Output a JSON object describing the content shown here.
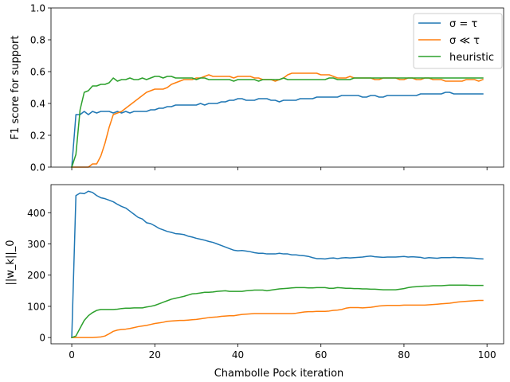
{
  "chart_data": [
    {
      "type": "line",
      "title": "",
      "xlabel": "",
      "ylabel": "F1 score for support",
      "xlim": [
        -5,
        104
      ],
      "ylim": [
        0,
        1.0
      ],
      "xticks": [
        0,
        20,
        40,
        60,
        80,
        100
      ],
      "xtick_labels_visible": false,
      "yticks": [
        0.0,
        0.2,
        0.4,
        0.6,
        0.8,
        1.0
      ],
      "ytick_labels": [
        "0.0",
        "0.2",
        "0.4",
        "0.6",
        "0.8",
        "1.0"
      ],
      "legend": {
        "location": "upper right",
        "entries": [
          "σ = τ",
          "σ ≪ τ",
          "heuristic"
        ]
      },
      "x": [
        0,
        1,
        2,
        3,
        4,
        5,
        6,
        7,
        8,
        9,
        10,
        11,
        12,
        13,
        14,
        15,
        16,
        17,
        18,
        19,
        20,
        21,
        22,
        23,
        24,
        25,
        26,
        27,
        28,
        29,
        30,
        31,
        32,
        33,
        34,
        35,
        36,
        37,
        38,
        39,
        40,
        41,
        42,
        43,
        44,
        45,
        46,
        47,
        48,
        49,
        50,
        51,
        52,
        53,
        54,
        55,
        56,
        57,
        58,
        59,
        60,
        61,
        62,
        63,
        64,
        65,
        66,
        67,
        68,
        69,
        70,
        71,
        72,
        73,
        74,
        75,
        76,
        77,
        78,
        79,
        80,
        81,
        82,
        83,
        84,
        85,
        86,
        87,
        88,
        89,
        90,
        91,
        92,
        93,
        94,
        95,
        96,
        97,
        98,
        99
      ],
      "series": [
        {
          "name": "σ = τ",
          "color": "#1f77b4",
          "values": [
            0.0,
            0.33,
            0.33,
            0.35,
            0.33,
            0.35,
            0.34,
            0.35,
            0.35,
            0.35,
            0.34,
            0.35,
            0.34,
            0.35,
            0.34,
            0.35,
            0.35,
            0.35,
            0.35,
            0.36,
            0.36,
            0.37,
            0.37,
            0.38,
            0.38,
            0.39,
            0.39,
            0.39,
            0.39,
            0.39,
            0.39,
            0.4,
            0.39,
            0.4,
            0.4,
            0.4,
            0.41,
            0.41,
            0.42,
            0.42,
            0.43,
            0.43,
            0.42,
            0.42,
            0.42,
            0.43,
            0.43,
            0.43,
            0.42,
            0.42,
            0.41,
            0.42,
            0.42,
            0.42,
            0.42,
            0.43,
            0.43,
            0.43,
            0.43,
            0.44,
            0.44,
            0.44,
            0.44,
            0.44,
            0.44,
            0.45,
            0.45,
            0.45,
            0.45,
            0.45,
            0.44,
            0.44,
            0.45,
            0.45,
            0.44,
            0.44,
            0.45,
            0.45,
            0.45,
            0.45,
            0.45,
            0.45,
            0.45,
            0.45,
            0.46,
            0.46,
            0.46,
            0.46,
            0.46,
            0.46,
            0.47,
            0.47,
            0.46,
            0.46,
            0.46,
            0.46,
            0.46,
            0.46,
            0.46,
            0.46
          ]
        },
        {
          "name": "σ ≪ τ",
          "color": "#ff7f0e",
          "values": [
            0.0,
            0.0,
            0.0,
            0.0,
            0.0,
            0.02,
            0.02,
            0.07,
            0.15,
            0.25,
            0.33,
            0.34,
            0.35,
            0.37,
            0.39,
            0.41,
            0.43,
            0.45,
            0.47,
            0.48,
            0.49,
            0.49,
            0.49,
            0.5,
            0.52,
            0.53,
            0.54,
            0.55,
            0.55,
            0.55,
            0.56,
            0.56,
            0.57,
            0.58,
            0.57,
            0.57,
            0.57,
            0.57,
            0.57,
            0.56,
            0.57,
            0.57,
            0.57,
            0.57,
            0.56,
            0.56,
            0.55,
            0.55,
            0.55,
            0.54,
            0.55,
            0.56,
            0.58,
            0.59,
            0.59,
            0.59,
            0.59,
            0.59,
            0.59,
            0.59,
            0.58,
            0.58,
            0.58,
            0.57,
            0.56,
            0.56,
            0.56,
            0.57,
            0.56,
            0.56,
            0.56,
            0.56,
            0.56,
            0.55,
            0.55,
            0.56,
            0.56,
            0.56,
            0.56,
            0.55,
            0.55,
            0.56,
            0.56,
            0.55,
            0.55,
            0.56,
            0.56,
            0.55,
            0.55,
            0.55,
            0.54,
            0.54,
            0.54,
            0.54,
            0.54,
            0.55,
            0.55,
            0.55,
            0.54,
            0.55
          ]
        },
        {
          "name": "heuristic",
          "color": "#2ca02c",
          "values": [
            0.0,
            0.08,
            0.36,
            0.47,
            0.48,
            0.51,
            0.51,
            0.52,
            0.52,
            0.53,
            0.56,
            0.54,
            0.55,
            0.55,
            0.56,
            0.55,
            0.55,
            0.56,
            0.55,
            0.56,
            0.57,
            0.57,
            0.56,
            0.57,
            0.57,
            0.56,
            0.56,
            0.56,
            0.56,
            0.56,
            0.55,
            0.56,
            0.56,
            0.55,
            0.55,
            0.55,
            0.55,
            0.55,
            0.55,
            0.54,
            0.55,
            0.55,
            0.55,
            0.55,
            0.55,
            0.54,
            0.55,
            0.55,
            0.55,
            0.55,
            0.55,
            0.56,
            0.55,
            0.55,
            0.55,
            0.55,
            0.55,
            0.55,
            0.55,
            0.55,
            0.55,
            0.55,
            0.56,
            0.56,
            0.55,
            0.55,
            0.55,
            0.55,
            0.56,
            0.56,
            0.56,
            0.56,
            0.56,
            0.56,
            0.56,
            0.56,
            0.56,
            0.56,
            0.56,
            0.56,
            0.56,
            0.56,
            0.56,
            0.56,
            0.56,
            0.56,
            0.56,
            0.56,
            0.56,
            0.56,
            0.56,
            0.56,
            0.56,
            0.56,
            0.56,
            0.56,
            0.56,
            0.56,
            0.56,
            0.56
          ]
        }
      ]
    },
    {
      "type": "line",
      "title": "",
      "xlabel": "Chambolle Pock iteration",
      "ylabel": "||w_k||_0",
      "xlim": [
        -5,
        104
      ],
      "ylim": [
        -20,
        490
      ],
      "xticks": [
        0,
        20,
        40,
        60,
        80,
        100
      ],
      "xtick_labels": [
        "0",
        "20",
        "40",
        "60",
        "80",
        "100"
      ],
      "yticks": [
        0,
        100,
        200,
        300,
        400
      ],
      "ytick_labels": [
        "0",
        "100",
        "200",
        "300",
        "400"
      ],
      "x": [
        0,
        1,
        2,
        3,
        4,
        5,
        6,
        7,
        8,
        9,
        10,
        11,
        12,
        13,
        14,
        15,
        16,
        17,
        18,
        19,
        20,
        21,
        22,
        23,
        24,
        25,
        26,
        27,
        28,
        29,
        30,
        31,
        32,
        33,
        34,
        35,
        36,
        37,
        38,
        39,
        40,
        41,
        42,
        43,
        44,
        45,
        46,
        47,
        48,
        49,
        50,
        51,
        52,
        53,
        54,
        55,
        56,
        57,
        58,
        59,
        60,
        61,
        62,
        63,
        64,
        65,
        66,
        67,
        68,
        69,
        70,
        71,
        72,
        73,
        74,
        75,
        76,
        77,
        78,
        79,
        80,
        81,
        82,
        83,
        84,
        85,
        86,
        87,
        88,
        89,
        90,
        91,
        92,
        93,
        94,
        95,
        96,
        97,
        98,
        99
      ],
      "series": [
        {
          "name": "σ = τ",
          "color": "#1f77b4",
          "values": [
            0,
            455,
            463,
            461,
            469,
            465,
            455,
            448,
            445,
            440,
            435,
            427,
            420,
            415,
            405,
            395,
            385,
            380,
            368,
            365,
            358,
            350,
            345,
            340,
            337,
            333,
            332,
            330,
            325,
            322,
            318,
            315,
            312,
            308,
            305,
            300,
            295,
            290,
            285,
            280,
            278,
            279,
            277,
            275,
            272,
            270,
            270,
            268,
            268,
            268,
            270,
            268,
            268,
            265,
            265,
            263,
            262,
            260,
            256,
            253,
            253,
            252,
            254,
            255,
            253,
            255,
            256,
            255,
            256,
            257,
            258,
            260,
            261,
            259,
            258,
            257,
            258,
            258,
            258,
            259,
            260,
            258,
            259,
            258,
            257,
            254,
            256,
            255,
            254,
            256,
            256,
            256,
            257,
            256,
            256,
            255,
            255,
            254,
            253,
            252
          ]
        },
        {
          "name": "σ ≪ τ",
          "color": "#ff7f0e",
          "values": [
            0,
            0,
            0,
            0,
            0,
            0,
            1,
            2,
            5,
            12,
            20,
            24,
            26,
            27,
            29,
            32,
            35,
            37,
            39,
            42,
            45,
            47,
            49,
            52,
            53,
            54,
            55,
            55,
            56,
            57,
            58,
            60,
            62,
            64,
            65,
            66,
            68,
            69,
            70,
            70,
            72,
            74,
            75,
            76,
            77,
            77,
            77,
            77,
            77,
            77,
            77,
            77,
            77,
            77,
            78,
            80,
            82,
            83,
            83,
            84,
            84,
            84,
            85,
            87,
            88,
            90,
            94,
            96,
            96,
            96,
            95,
            96,
            97,
            99,
            101,
            102,
            103,
            103,
            103,
            103,
            104,
            104,
            104,
            104,
            104,
            104,
            105,
            106,
            107,
            108,
            109,
            110,
            112,
            114,
            115,
            116,
            117,
            118,
            119,
            119
          ]
        },
        {
          "name": "heuristic",
          "color": "#2ca02c",
          "values": [
            0,
            5,
            30,
            55,
            70,
            80,
            87,
            90,
            90,
            90,
            90,
            91,
            93,
            94,
            94,
            95,
            95,
            95,
            98,
            100,
            103,
            108,
            113,
            118,
            123,
            126,
            129,
            132,
            136,
            140,
            141,
            143,
            145,
            145,
            146,
            148,
            149,
            150,
            148,
            148,
            148,
            148,
            150,
            151,
            152,
            152,
            152,
            150,
            152,
            154,
            156,
            157,
            158,
            159,
            160,
            160,
            160,
            159,
            159,
            160,
            160,
            160,
            158,
            158,
            160,
            159,
            158,
            158,
            157,
            157,
            156,
            156,
            155,
            155,
            154,
            153,
            153,
            153,
            153,
            155,
            157,
            160,
            162,
            163,
            164,
            165,
            165,
            166,
            166,
            166,
            167,
            168,
            168,
            168,
            168,
            168,
            167,
            167,
            167,
            167
          ]
        }
      ]
    }
  ]
}
